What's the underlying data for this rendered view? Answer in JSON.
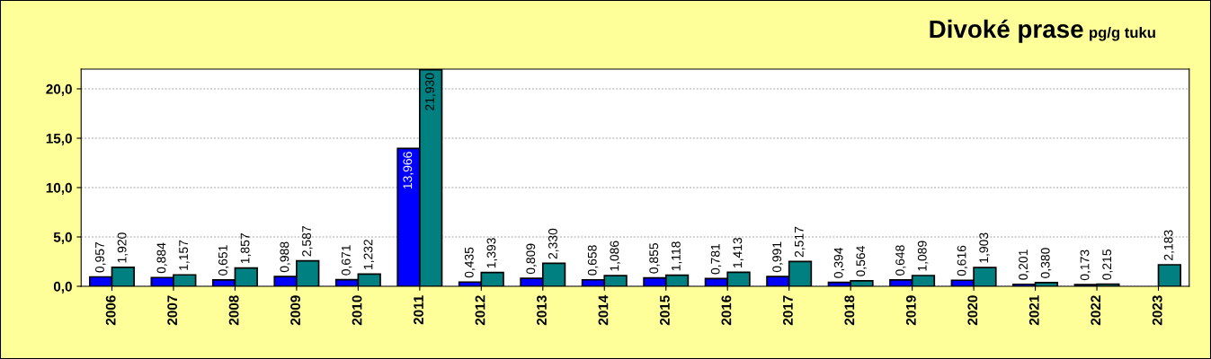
{
  "chart_data": {
    "type": "bar",
    "title": "Divoké prase",
    "subtitle": "pg/g tuku",
    "categories": [
      "2006",
      "2007",
      "2008",
      "2009",
      "2010",
      "2011",
      "2012",
      "2013",
      "2014",
      "2015",
      "2016",
      "2017",
      "2018",
      "2019",
      "2020",
      "2021",
      "2022",
      "2023"
    ],
    "series": [
      {
        "color": "#0000ff",
        "values": [
          0.957,
          0.884,
          0.651,
          0.988,
          0.671,
          13.966,
          0.435,
          0.809,
          0.658,
          0.855,
          0.781,
          0.991,
          0.394,
          0.648,
          0.616,
          0.201,
          0.173,
          null
        ],
        "value_labels": [
          "0,957",
          "0,884",
          "0,651",
          "0,988",
          "0,671",
          "13,966",
          "0,435",
          "0,809",
          "0,658",
          "0,855",
          "0,781",
          "0,991",
          "0,394",
          "0,648",
          "0,616",
          "0,201",
          "0,173",
          null
        ]
      },
      {
        "color": "#008080",
        "values": [
          1.92,
          1.157,
          1.857,
          2.587,
          1.232,
          21.93,
          1.393,
          2.33,
          1.086,
          1.118,
          1.413,
          2.517,
          0.564,
          1.089,
          1.903,
          0.38,
          0.215,
          2.183
        ],
        "value_labels": [
          "1,920",
          "1,157",
          "1,857",
          "2,587",
          "1,232",
          "21,930",
          "1,393",
          "2,330",
          "1,086",
          "1,118",
          "1,413",
          "2,517",
          "0,564",
          "1,089",
          "1,903",
          "0,380",
          "0,215",
          "2,183"
        ]
      }
    ],
    "ylim": [
      0,
      22
    ],
    "yticks": [
      {
        "value": 0,
        "label": "0,0"
      },
      {
        "value": 5,
        "label": "5,0"
      },
      {
        "value": 10,
        "label": "10,0"
      },
      {
        "value": 15,
        "label": "15,0"
      },
      {
        "value": 20,
        "label": "20,0"
      }
    ],
    "grid": "y",
    "legend": false
  }
}
